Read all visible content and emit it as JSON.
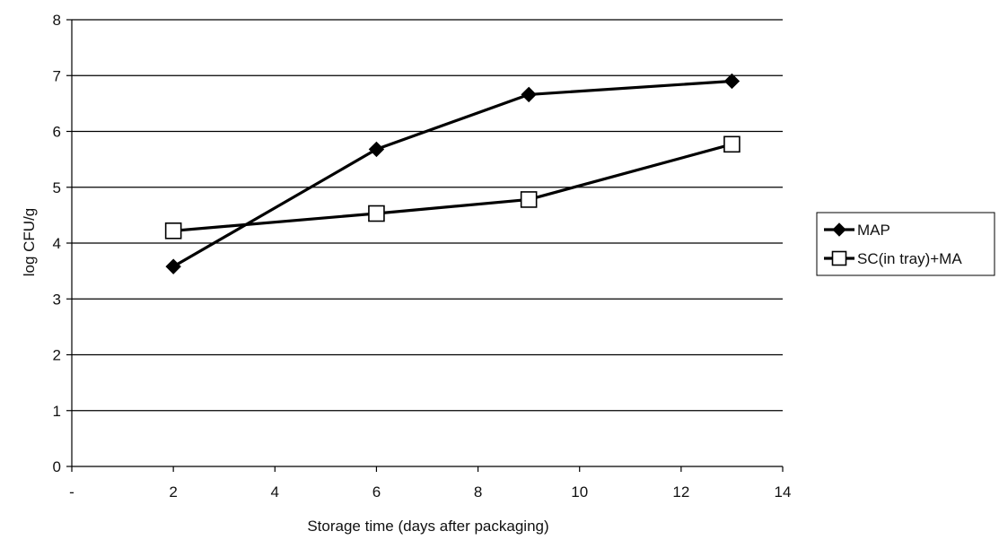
{
  "chart_data": {
    "type": "line",
    "title": "",
    "xlabel": "Storage time (days after packaging)",
    "ylabel": "log CFU/g",
    "xlim": [
      0,
      14
    ],
    "ylim": [
      0,
      8
    ],
    "x_ticks": [
      0,
      2,
      4,
      6,
      8,
      10,
      12,
      14
    ],
    "x_tick_labels": [
      "-",
      "2",
      "4",
      "6",
      "8",
      "10",
      "12",
      "14"
    ],
    "y_ticks": [
      0,
      1,
      2,
      3,
      4,
      5,
      6,
      7,
      8
    ],
    "y_tick_labels": [
      "0",
      "1",
      "2",
      "3",
      "4",
      "5",
      "6",
      "7",
      "8"
    ],
    "grid": "horizontal",
    "legend_position": "right",
    "series": [
      {
        "name": "MAP",
        "marker": "diamond-filled",
        "color": "#000000",
        "x": [
          2,
          6,
          9,
          13
        ],
        "y": [
          3.58,
          5.68,
          6.66,
          6.9
        ]
      },
      {
        "name": "SC(in tray)+MA",
        "marker": "square-open",
        "color": "#000000",
        "x": [
          2,
          6,
          9,
          13
        ],
        "y": [
          4.22,
          4.53,
          4.78,
          5.77
        ]
      }
    ]
  }
}
